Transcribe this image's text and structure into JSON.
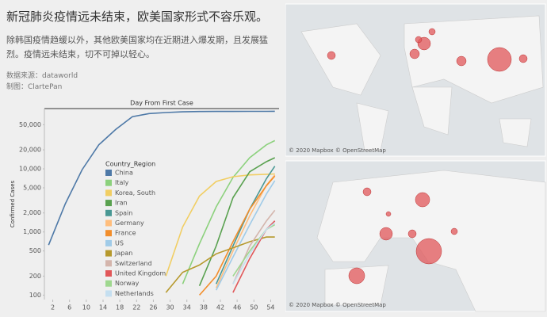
{
  "header": {
    "title": "新冠肺炎疫情远未结束，欧美国家形式不容乐观。",
    "subtitle": "除韩国疫情趋缓以外，其他欧美国家均在近期进入爆发期，且发展猛烈。疫情远未结束，切不可掉以轻心。",
    "source": "数据来源：dataworld",
    "author": "制图：ClartePan"
  },
  "chart_data": {
    "type": "line",
    "title": "Day From First Case",
    "y_label": "Confirmed Cases",
    "legend_title": "Country_Region",
    "log_y": true,
    "x": [
      1,
      5,
      9,
      13,
      17,
      21,
      25,
      29,
      33,
      37,
      41,
      45,
      49,
      53,
      55
    ],
    "xlim": [
      0,
      56
    ],
    "xticks": [
      2,
      6,
      10,
      14,
      18,
      22,
      26,
      30,
      34,
      38,
      42,
      46,
      50,
      54
    ],
    "ylim": [
      85,
      90000
    ],
    "yticks": [
      100,
      200,
      500,
      {
        "value": 1000,
        "label": "1,000"
      },
      {
        "value": 2000,
        "label": "2,000"
      },
      {
        "value": 5000,
        "label": "5,000"
      },
      {
        "value": 10000,
        "label": "10,000"
      },
      {
        "value": 20000,
        "label": "20,000"
      },
      {
        "value": 50000,
        "label": "50,000"
      }
    ],
    "series": [
      {
        "name": "China",
        "color": "#4e79a7",
        "values": [
          620,
          2800,
          9700,
          24000,
          42000,
          67000,
          75000,
          78000,
          80000,
          80800,
          81000,
          81200,
          81300,
          81400,
          81500
        ]
      },
      {
        "name": "Italy",
        "color": "#8cd17d",
        "values": [
          null,
          null,
          null,
          null,
          null,
          null,
          null,
          null,
          150,
          650,
          2500,
          7300,
          15000,
          24000,
          28000
        ]
      },
      {
        "name": "Korea, South",
        "color": "#f1ce63",
        "values": [
          null,
          null,
          null,
          null,
          null,
          null,
          null,
          200,
          1200,
          3700,
          6300,
          7500,
          8000,
          8200,
          8300
        ]
      },
      {
        "name": "Iran",
        "color": "#59a14f",
        "values": [
          null,
          null,
          null,
          null,
          null,
          null,
          null,
          null,
          null,
          140,
          600,
          3500,
          9000,
          13000,
          15000
        ]
      },
      {
        "name": "Spain",
        "color": "#499894",
        "values": [
          null,
          null,
          null,
          null,
          null,
          null,
          null,
          null,
          null,
          null,
          150,
          600,
          2300,
          7000,
          11000
        ]
      },
      {
        "name": "Germany",
        "color": "#ffbe7d",
        "values": [
          null,
          null,
          null,
          null,
          null,
          null,
          null,
          null,
          null,
          null,
          130,
          500,
          1800,
          5500,
          8000
        ]
      },
      {
        "name": "France",
        "color": "#f28e2b",
        "values": [
          null,
          null,
          null,
          null,
          null,
          null,
          null,
          null,
          null,
          100,
          200,
          700,
          2300,
          5400,
          7700
        ]
      },
      {
        "name": "US",
        "color": "#a0cbe8",
        "values": [
          null,
          null,
          null,
          null,
          null,
          null,
          null,
          null,
          null,
          null,
          120,
          400,
          1300,
          4000,
          6500
        ]
      },
      {
        "name": "Japan",
        "color": "#b6992d",
        "values": [
          null,
          null,
          null,
          null,
          null,
          null,
          null,
          110,
          230,
          300,
          450,
          560,
          700,
          830,
          830
        ]
      },
      {
        "name": "Switzerland",
        "color": "#d4b5ac",
        "values": [
          null,
          null,
          null,
          null,
          null,
          null,
          null,
          null,
          null,
          null,
          null,
          150,
          600,
          1500,
          2200
        ]
      },
      {
        "name": "United Kingdom",
        "color": "#e15759",
        "values": [
          null,
          null,
          null,
          null,
          null,
          null,
          null,
          null,
          null,
          null,
          null,
          110,
          380,
          1100,
          1500
        ]
      },
      {
        "name": "Norway",
        "color": "#9fd88f",
        "values": [
          null,
          null,
          null,
          null,
          null,
          null,
          null,
          null,
          null,
          null,
          null,
          200,
          500,
          1100,
          1300
        ]
      },
      {
        "name": "Netherlands",
        "color": "#c5dff0",
        "values": [
          null,
          null,
          null,
          null,
          null,
          null,
          null,
          null,
          null,
          null,
          null,
          150,
          450,
          1100,
          1400
        ]
      }
    ]
  },
  "maps": [
    {
      "attribution": "© 2020 Mapbox © OpenStreetMap"
    },
    {
      "attribution": "© 2020 Mapbox © OpenStreetMap"
    }
  ]
}
